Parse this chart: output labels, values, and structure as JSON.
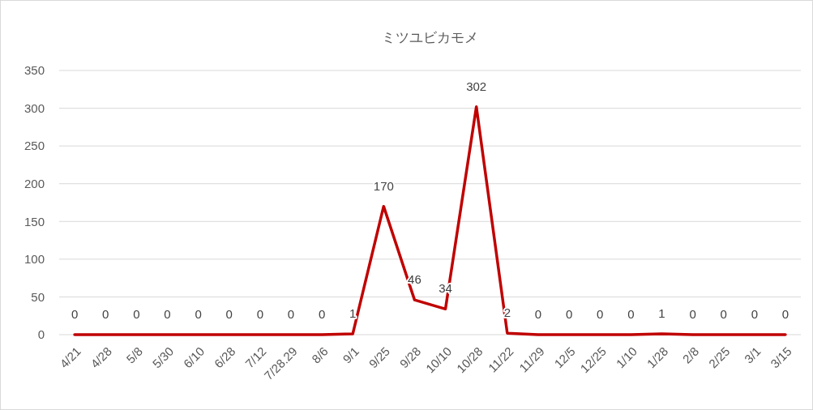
{
  "chart_data": {
    "type": "line",
    "title": "ミツユビカモメ",
    "categories": [
      "4/21",
      "4/28",
      "5/8",
      "5/30",
      "6/10",
      "6/28",
      "7/12",
      "7/28.29",
      "8/6",
      "9/1",
      "9/25",
      "9/28",
      "10/10",
      "10/28",
      "11/22",
      "11/29",
      "12/5",
      "12/25",
      "1/10",
      "1/28",
      "2/8",
      "2/25",
      "3/1",
      "3/15"
    ],
    "series": [
      {
        "color": "#c00000",
        "values": [
          0,
          0,
          0,
          0,
          0,
          0,
          0,
          0,
          0,
          1,
          170,
          46,
          34,
          302,
          2,
          0,
          0,
          0,
          0,
          1,
          0,
          0,
          0,
          0
        ]
      }
    ],
    "ylim": [
      0,
      350
    ],
    "yticks": [
      0,
      50,
      100,
      150,
      200,
      250,
      300,
      350
    ],
    "grid": "y",
    "data_labels": true,
    "marker": "none",
    "line_style": "solid"
  }
}
